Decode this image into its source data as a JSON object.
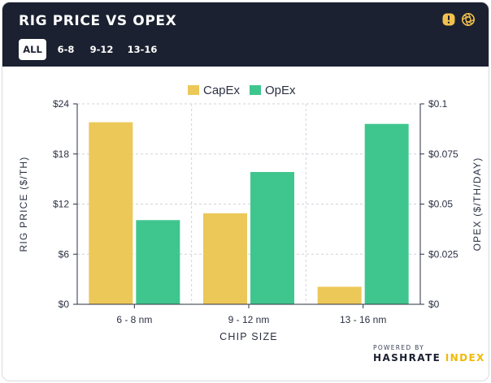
{
  "header": {
    "title": "RIG PRICE VS OPEX",
    "tabs": [
      {
        "label": "ALL",
        "active": true
      },
      {
        "label": "6-8",
        "active": false
      },
      {
        "label": "9-12",
        "active": false
      },
      {
        "label": "13-16",
        "active": false
      }
    ],
    "icons": [
      "lightbulb-icon",
      "camera-aperture-icon"
    ]
  },
  "colors": {
    "header_bg": "#1b2130",
    "capex": "#ecc858",
    "opex": "#3fc68e",
    "icon_yellow": "#f2c14e",
    "brand_accent": "#f0b90b"
  },
  "chart_data": {
    "type": "bar",
    "title": "RIG PRICE VS OPEX",
    "categories": [
      "6 - 8 nm",
      "9 - 12 nm",
      "13 - 16 nm"
    ],
    "xlabel": "CHIP SIZE",
    "series": [
      {
        "name": "CapEx",
        "axis": "left",
        "values": [
          21.8,
          10.9,
          2.1
        ]
      },
      {
        "name": "OpEx",
        "axis": "right",
        "values": [
          0.042,
          0.066,
          0.09
        ]
      }
    ],
    "left_axis": {
      "label": "RIG PRICE ($/TH)",
      "ylim": [
        0,
        24
      ],
      "ticks": [
        0,
        6,
        12,
        18,
        24
      ],
      "tick_labels": [
        "$0",
        "$6",
        "$12",
        "$18",
        "$24"
      ]
    },
    "right_axis": {
      "label": "OPEX ($/TH/DAY)",
      "ylim": [
        0,
        0.1
      ],
      "ticks": [
        0,
        0.025,
        0.05,
        0.075,
        0.1
      ],
      "tick_labels": [
        "$0",
        "$0.025",
        "$0.05",
        "$0.075",
        "$0.1"
      ]
    },
    "legend": {
      "position": "top",
      "entries": [
        "CapEx",
        "OpEx"
      ]
    },
    "grid": true
  },
  "branding": {
    "powered_by": "POWERED BY",
    "name_main": "HASHRATE",
    "name_accent": "INDEX"
  }
}
